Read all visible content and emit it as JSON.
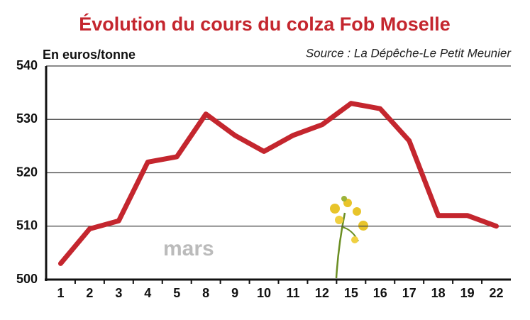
{
  "chart_data": {
    "type": "line",
    "title": "Évolution du cours du colza Fob Moselle",
    "y_label": "En euros/tonne",
    "source": "Source : La Dépêche-Le Petit Meunier",
    "annotation": "mars",
    "categories": [
      "1",
      "2",
      "3",
      "4",
      "5",
      "8",
      "9",
      "10",
      "11",
      "12",
      "15",
      "16",
      "17",
      "18",
      "19",
      "22"
    ],
    "values": [
      503,
      509.5,
      511,
      522,
      523,
      531,
      527,
      524,
      527,
      529,
      533,
      532,
      526,
      512,
      512,
      510
    ],
    "color": "#c4262e",
    "ylim": [
      500,
      540
    ],
    "yticks": [
      500,
      510,
      520,
      530,
      540
    ],
    "grid": true
  }
}
